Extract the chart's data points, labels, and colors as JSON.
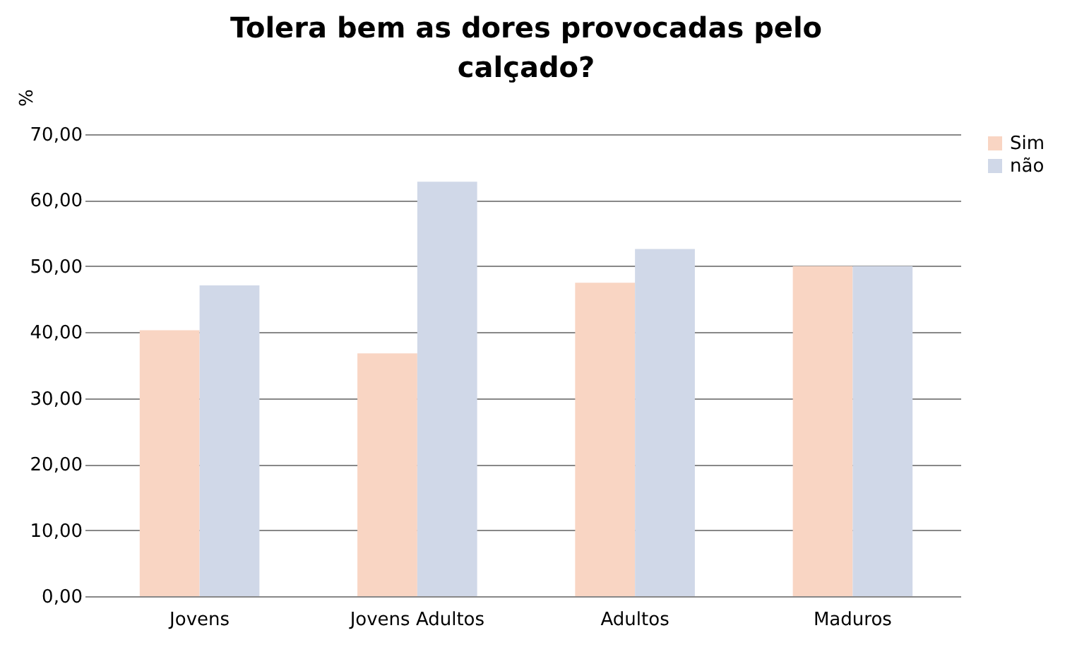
{
  "chart_data": {
    "type": "bar",
    "title": "Tolera bem as dores provocadas pelo calçado?",
    "ylabel": "%",
    "categories": [
      "Jovens",
      "Jovens Adultos",
      "Adultos",
      "Maduros"
    ],
    "series": [
      {
        "name": "Sim",
        "color": "#f9d5c3",
        "values": [
          40.3,
          36.8,
          47.5,
          50.0
        ]
      },
      {
        "name": "não",
        "color": "#d0d8e8",
        "values": [
          47.1,
          62.8,
          52.6,
          50.0
        ]
      }
    ],
    "ylim": [
      0,
      70
    ],
    "yticks": [
      {
        "value": 0,
        "label": "0,00"
      },
      {
        "value": 10,
        "label": "10,00"
      },
      {
        "value": 20,
        "label": "20,00"
      },
      {
        "value": 30,
        "label": "30,00"
      },
      {
        "value": 40,
        "label": "40,00"
      },
      {
        "value": 50,
        "label": "50,00"
      },
      {
        "value": 60,
        "label": "60,00"
      },
      {
        "value": 70,
        "label": "70,00"
      }
    ],
    "grid": "y",
    "legend": "right"
  }
}
